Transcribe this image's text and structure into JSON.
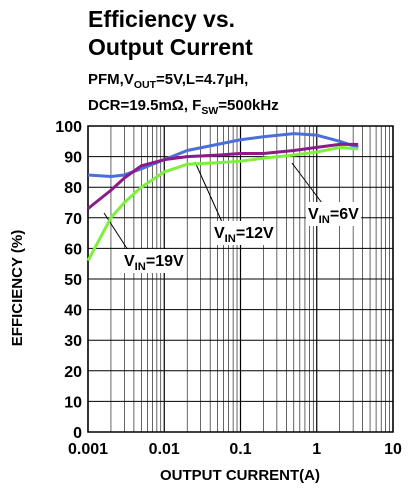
{
  "chart_data": {
    "type": "line",
    "title": [
      "Efficiency vs.",
      "Output Current"
    ],
    "subtitle": [
      [
        "PFM,V",
        "OUT",
        "=5V,L=4.7µH,"
      ],
      [
        "DCR=19.5mΩ, F",
        "SW",
        "=500kHz"
      ]
    ],
    "xlabel": "OUTPUT CURRENT(A)",
    "ylabel": "EFFICIENCY (%)",
    "xlog": true,
    "grid": true,
    "x": [
      0.001,
      0.002,
      0.003,
      0.005,
      0.01,
      0.02,
      0.05,
      0.1,
      0.2,
      0.5,
      1,
      2,
      3.5
    ],
    "series": [
      {
        "name": [
          "V",
          "IN",
          "=6V"
        ],
        "color": "#4a6fd8",
        "values": [
          84,
          83.5,
          84,
          86,
          89,
          92,
          94,
          95.5,
          96.5,
          97.5,
          97,
          95,
          93
        ]
      },
      {
        "name": [
          "V",
          "IN",
          "=12V"
        ],
        "color": "#8b1a8b",
        "values": [
          73,
          79,
          83,
          87,
          89,
          90,
          90.5,
          91,
          91,
          92,
          93,
          94,
          94
        ]
      },
      {
        "name": [
          "V",
          "IN",
          "=19V"
        ],
        "color": "#7cf03a",
        "values": [
          56,
          70,
          75,
          80,
          85,
          87.5,
          88,
          88.5,
          89.5,
          90.5,
          91.5,
          93,
          92.5
        ]
      }
    ],
    "xlim": [
      0.001,
      10
    ],
    "xticks": [
      0.001,
      0.01,
      0.1,
      1,
      10
    ],
    "ylim": [
      0,
      100
    ],
    "yticks": [
      0,
      10,
      20,
      30,
      40,
      50,
      60,
      70,
      80,
      90,
      100
    ]
  }
}
